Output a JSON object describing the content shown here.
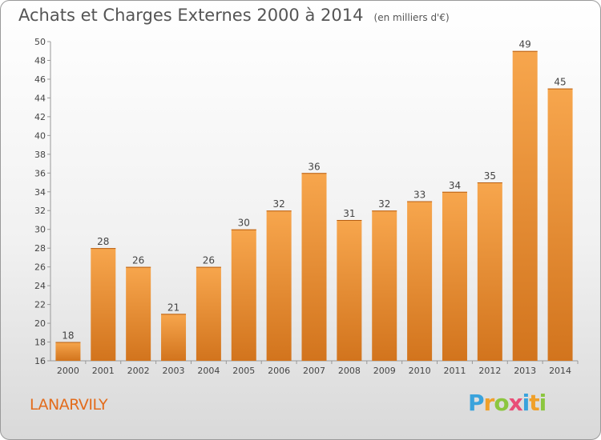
{
  "header": {
    "title": "Achats et Charges Externes 2000 à 2014",
    "unit_note": "(en milliers d'€)"
  },
  "commune": "LANARVILY",
  "logo": {
    "text": "Proxiti",
    "letters": [
      {
        "ch": "P",
        "color": "#3aa3dc"
      },
      {
        "ch": "r",
        "color": "#f0a02a"
      },
      {
        "ch": "o",
        "color": "#8cc63f"
      },
      {
        "ch": "x",
        "color": "#e94e77"
      },
      {
        "ch": "i",
        "color": "#3aa3dc"
      },
      {
        "ch": "t",
        "color": "#f0a02a"
      },
      {
        "ch": "i",
        "color": "#8cc63f"
      }
    ]
  },
  "chart_data": {
    "type": "bar",
    "title": "Achats et Charges Externes 2000 à 2014",
    "subtitle": "(en milliers d'€)",
    "categories": [
      "2000",
      "2001",
      "2002",
      "2003",
      "2004",
      "2005",
      "2006",
      "2007",
      "2008",
      "2009",
      "2010",
      "2011",
      "2012",
      "2013",
      "2014"
    ],
    "values": [
      18,
      28,
      26,
      21,
      26,
      30,
      32,
      36,
      31,
      32,
      33,
      34,
      35,
      49,
      45
    ],
    "ylim": [
      16,
      50
    ],
    "yticks": [
      16,
      18,
      20,
      22,
      24,
      26,
      28,
      30,
      32,
      34,
      36,
      38,
      40,
      42,
      44,
      46,
      48,
      50
    ],
    "grid": false,
    "data_labels": true,
    "colors": {
      "bar_light": "#f7a64d",
      "bar_dark": "#d2741d",
      "axis": "#999999",
      "text": "#444444"
    }
  }
}
